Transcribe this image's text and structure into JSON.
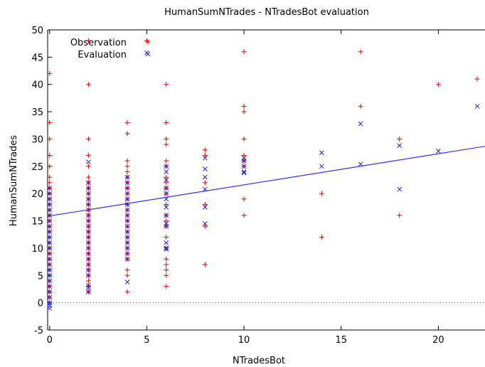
{
  "chart_data": {
    "type": "scatter",
    "title": "HumanSumNTrades - NTradesBot evaluation",
    "xlabel": "NTradesBot",
    "ylabel": "HumanSumNTrades",
    "xlim": [
      -0.1,
      22.4
    ],
    "ylim": [
      -5,
      50
    ],
    "xticks": [
      0,
      5,
      10,
      15,
      20
    ],
    "yticks": [
      -5,
      0,
      5,
      10,
      15,
      20,
      25,
      30,
      35,
      40,
      45,
      50
    ],
    "grid": false,
    "zero_line": "dotted",
    "legend_position": "top-left",
    "colors": {
      "observation": "#e00000",
      "evaluation": "#2020e0",
      "line": "#3030ff"
    },
    "fit_line": {
      "intercept": 15.9,
      "slope": 0.57
    },
    "series": [
      {
        "name": "Observation",
        "marker": "plus",
        "points": [
          [
            0,
            42
          ],
          [
            0,
            33
          ],
          [
            0,
            30
          ],
          [
            0,
            27
          ],
          [
            0,
            25
          ],
          [
            0,
            23
          ],
          [
            0,
            22
          ],
          [
            0,
            21
          ],
          [
            0,
            20
          ],
          [
            0,
            19
          ],
          [
            0,
            18
          ],
          [
            0,
            17
          ],
          [
            0,
            16
          ],
          [
            0,
            15
          ],
          [
            0,
            14
          ],
          [
            0,
            13
          ],
          [
            0,
            12
          ],
          [
            0,
            11
          ],
          [
            0,
            10
          ],
          [
            0,
            9
          ],
          [
            0,
            8
          ],
          [
            0,
            7
          ],
          [
            0,
            6
          ],
          [
            0,
            5
          ],
          [
            0,
            4
          ],
          [
            0,
            3
          ],
          [
            0,
            2
          ],
          [
            0,
            1
          ],
          [
            0,
            0
          ],
          [
            2,
            48
          ],
          [
            2,
            40
          ],
          [
            2,
            30
          ],
          [
            2,
            27
          ],
          [
            2,
            25
          ],
          [
            2,
            23
          ],
          [
            2,
            22
          ],
          [
            2,
            21
          ],
          [
            2,
            20
          ],
          [
            2,
            19
          ],
          [
            2,
            18
          ],
          [
            2,
            17
          ],
          [
            2,
            16
          ],
          [
            2,
            15
          ],
          [
            2,
            14
          ],
          [
            2,
            13
          ],
          [
            2,
            12
          ],
          [
            2,
            11
          ],
          [
            2,
            10
          ],
          [
            2,
            9
          ],
          [
            2,
            8
          ],
          [
            2,
            7
          ],
          [
            2,
            6
          ],
          [
            2,
            5
          ],
          [
            2,
            4
          ],
          [
            2,
            3
          ],
          [
            2,
            2
          ],
          [
            4,
            33
          ],
          [
            4,
            31
          ],
          [
            4,
            26
          ],
          [
            4,
            25
          ],
          [
            4,
            24
          ],
          [
            4,
            23
          ],
          [
            4,
            22
          ],
          [
            4,
            21
          ],
          [
            4,
            20
          ],
          [
            4,
            19
          ],
          [
            4,
            18
          ],
          [
            4,
            17
          ],
          [
            4,
            16
          ],
          [
            4,
            15
          ],
          [
            4,
            14
          ],
          [
            4,
            13
          ],
          [
            4,
            12
          ],
          [
            4,
            11
          ],
          [
            4,
            10
          ],
          [
            4,
            9
          ],
          [
            4,
            8
          ],
          [
            4,
            6
          ],
          [
            4,
            5
          ],
          [
            4,
            2
          ],
          [
            5,
            48
          ],
          [
            6,
            40
          ],
          [
            6,
            33
          ],
          [
            6,
            30
          ],
          [
            6,
            29
          ],
          [
            6,
            26
          ],
          [
            6,
            25
          ],
          [
            6,
            23
          ],
          [
            6,
            22
          ],
          [
            6,
            21
          ],
          [
            6,
            20
          ],
          [
            6,
            18
          ],
          [
            6,
            16
          ],
          [
            6,
            15
          ],
          [
            6,
            14
          ],
          [
            6,
            12
          ],
          [
            6,
            10
          ],
          [
            6,
            8
          ],
          [
            6,
            7
          ],
          [
            6,
            6
          ],
          [
            6,
            5
          ],
          [
            6,
            3
          ],
          [
            8,
            28
          ],
          [
            8,
            27
          ],
          [
            8,
            22
          ],
          [
            8,
            18
          ],
          [
            8,
            14
          ],
          [
            8,
            7
          ],
          [
            10,
            46
          ],
          [
            10,
            36
          ],
          [
            10,
            35
          ],
          [
            10,
            30
          ],
          [
            10,
            27
          ],
          [
            10,
            26
          ],
          [
            10,
            25
          ],
          [
            10,
            19
          ],
          [
            10,
            16
          ],
          [
            14,
            20
          ],
          [
            14,
            12
          ],
          [
            16,
            46
          ],
          [
            16,
            36
          ],
          [
            18,
            30
          ],
          [
            18,
            16
          ],
          [
            20,
            40
          ],
          [
            22,
            41
          ]
        ]
      },
      {
        "name": "Evaluation",
        "marker": "x",
        "points": [
          [
            0,
            21
          ],
          [
            0,
            20
          ],
          [
            0,
            19
          ],
          [
            0,
            18
          ],
          [
            0,
            17
          ],
          [
            0,
            16
          ],
          [
            0,
            15
          ],
          [
            0,
            14
          ],
          [
            0,
            13
          ],
          [
            0,
            12
          ],
          [
            0,
            11
          ],
          [
            0,
            10
          ],
          [
            0,
            9
          ],
          [
            0,
            8
          ],
          [
            0,
            7
          ],
          [
            0,
            6
          ],
          [
            0,
            5
          ],
          [
            0,
            4
          ],
          [
            0,
            3
          ],
          [
            0,
            2
          ],
          [
            0,
            1
          ],
          [
            0,
            0
          ],
          [
            0,
            -0.5
          ],
          [
            0,
            -1
          ],
          [
            2,
            25.8
          ],
          [
            2,
            22
          ],
          [
            2,
            21
          ],
          [
            2,
            20
          ],
          [
            2,
            19
          ],
          [
            2,
            18
          ],
          [
            2,
            17
          ],
          [
            2,
            16
          ],
          [
            2,
            15
          ],
          [
            2,
            14
          ],
          [
            2,
            13
          ],
          [
            2,
            12
          ],
          [
            2,
            11
          ],
          [
            2,
            10
          ],
          [
            2,
            9
          ],
          [
            2,
            8
          ],
          [
            2,
            7
          ],
          [
            2,
            6
          ],
          [
            2,
            5
          ],
          [
            2,
            3.2
          ],
          [
            2,
            2.8
          ],
          [
            2,
            2
          ],
          [
            4,
            23
          ],
          [
            4,
            22
          ],
          [
            4,
            21
          ],
          [
            4,
            20
          ],
          [
            4,
            19
          ],
          [
            4,
            18
          ],
          [
            4,
            17
          ],
          [
            4,
            16
          ],
          [
            4,
            15
          ],
          [
            4,
            14
          ],
          [
            4,
            13
          ],
          [
            4,
            12
          ],
          [
            4,
            11
          ],
          [
            4,
            10
          ],
          [
            4,
            9
          ],
          [
            4,
            8
          ],
          [
            4,
            3.8
          ],
          [
            6,
            25
          ],
          [
            6,
            24
          ],
          [
            6,
            22.5
          ],
          [
            6,
            21
          ],
          [
            6,
            20
          ],
          [
            6,
            19
          ],
          [
            6,
            17.5
          ],
          [
            6,
            16
          ],
          [
            6,
            14.5
          ],
          [
            6,
            14
          ],
          [
            6,
            11
          ],
          [
            6,
            10
          ],
          [
            6,
            9.8
          ],
          [
            8,
            26.5
          ],
          [
            8,
            24.5
          ],
          [
            8,
            23
          ],
          [
            8,
            20.8
          ],
          [
            8,
            17.5
          ],
          [
            8,
            14.5
          ],
          [
            10,
            26.5
          ],
          [
            10,
            26
          ],
          [
            10,
            25
          ],
          [
            10,
            24
          ],
          [
            10,
            23.8
          ],
          [
            14,
            27.5
          ],
          [
            14,
            25
          ],
          [
            16,
            32.8
          ],
          [
            16,
            25.4
          ],
          [
            18,
            28.8
          ],
          [
            18,
            20.8
          ],
          [
            20,
            27.8
          ],
          [
            22,
            36
          ],
          [
            5,
            45.8
          ]
        ]
      }
    ]
  }
}
